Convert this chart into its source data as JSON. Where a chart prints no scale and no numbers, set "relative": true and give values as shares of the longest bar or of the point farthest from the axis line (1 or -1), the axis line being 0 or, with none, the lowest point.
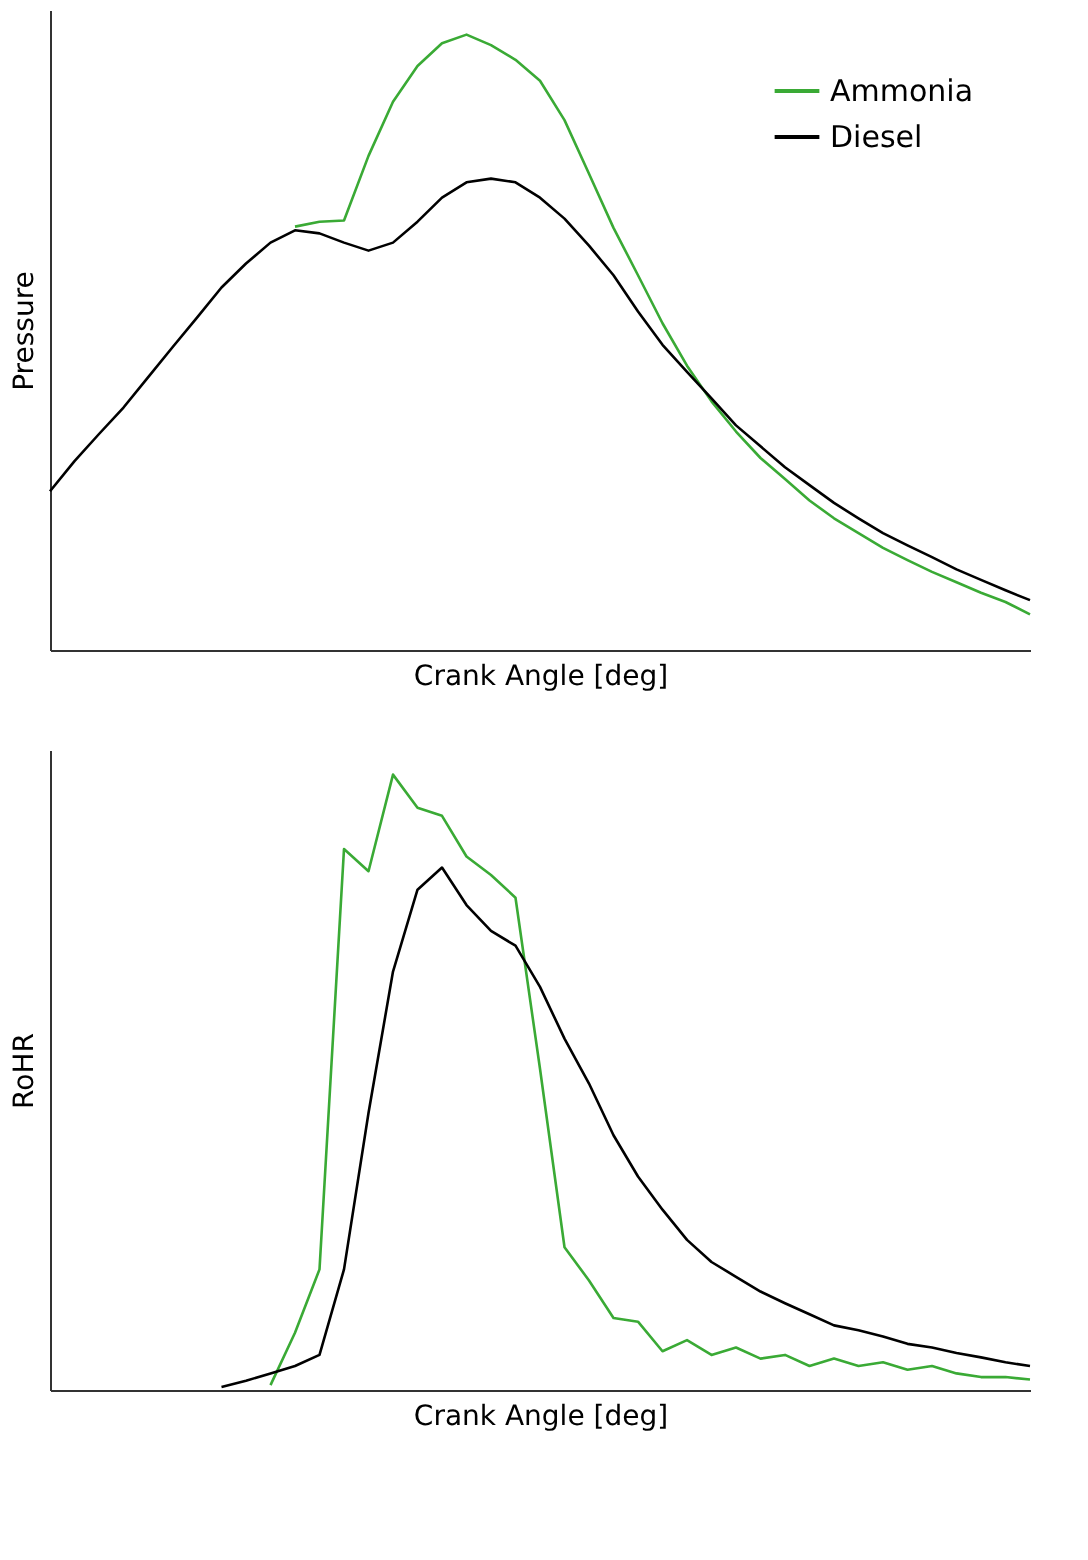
{
  "chart_data": [
    {
      "type": "line",
      "relative": true,
      "ylabel": "Pressure",
      "xlabel": "Crank Angle [deg]",
      "legend": "top right",
      "grid": false,
      "tick_labels": false,
      "categories": [
        null,
        null,
        null,
        null,
        null,
        null,
        null,
        null,
        null,
        null,
        null,
        null,
        null,
        null,
        null,
        null,
        null,
        null,
        null,
        null,
        null,
        null,
        null,
        null,
        null,
        null,
        null,
        null,
        null,
        null,
        null,
        null,
        null,
        null,
        null,
        null,
        null,
        null,
        null,
        null,
        null
      ],
      "series": [
        {
          "name": "Ammonia",
          "color": "#3aaa35",
          "values": [
            null,
            null,
            null,
            null,
            null,
            null,
            null,
            null,
            null,
            null,
            0.688,
            0.696,
            0.698,
            0.803,
            0.891,
            0.949,
            0.986,
            1.0,
            0.983,
            0.959,
            0.925,
            0.861,
            0.774,
            0.686,
            0.609,
            0.531,
            0.462,
            0.404,
            0.355,
            0.312,
            0.278,
            0.243,
            0.214,
            0.19,
            0.166,
            0.146,
            0.127,
            0.11,
            0.093,
            0.078,
            0.058
          ]
        },
        {
          "name": "Diesel",
          "color": "#000000",
          "values": [
            0.258,
            0.307,
            0.351,
            0.394,
            0.443,
            0.492,
            0.54,
            0.589,
            0.628,
            0.662,
            0.682,
            0.677,
            0.662,
            0.649,
            0.662,
            0.696,
            0.735,
            0.76,
            0.766,
            0.76,
            0.735,
            0.701,
            0.657,
            0.609,
            0.55,
            0.496,
            0.452,
            0.409,
            0.365,
            0.331,
            0.297,
            0.268,
            0.239,
            0.214,
            0.19,
            0.17,
            0.151,
            0.131,
            0.114,
            0.097,
            0.081
          ]
        }
      ]
    },
    {
      "type": "line",
      "relative": true,
      "ylabel": "RoHR",
      "xlabel": "Crank Angle [deg]",
      "grid": false,
      "tick_labels": false,
      "categories": [
        null,
        null,
        null,
        null,
        null,
        null,
        null,
        null,
        null,
        null,
        null,
        null,
        null,
        null,
        null,
        null,
        null,
        null,
        null,
        null,
        null,
        null,
        null,
        null,
        null,
        null,
        null,
        null,
        null,
        null,
        null,
        null,
        null,
        null,
        null,
        null,
        null,
        null,
        null,
        null,
        null
      ],
      "series": [
        {
          "color": "#3aaa35",
          "values": [
            null,
            null,
            null,
            null,
            null,
            null,
            null,
            null,
            null,
            0.008,
            0.093,
            0.196,
            0.879,
            0.843,
            1.0,
            0.946,
            0.933,
            0.867,
            0.837,
            0.8,
            0.522,
            0.232,
            0.178,
            0.117,
            0.111,
            0.063,
            0.081,
            0.057,
            0.069,
            0.051,
            0.057,
            0.039,
            0.051,
            0.039,
            0.045,
            0.033,
            0.039,
            0.027,
            0.021,
            0.021,
            0.017
          ]
        },
        {
          "color": "#000000",
          "values": [
            null,
            null,
            null,
            null,
            null,
            null,
            null,
            0.005,
            0.015,
            0.027,
            0.039,
            0.057,
            0.196,
            0.45,
            0.68,
            0.813,
            0.849,
            0.788,
            0.746,
            0.722,
            0.655,
            0.571,
            0.498,
            0.414,
            0.347,
            0.293,
            0.244,
            0.208,
            0.184,
            0.16,
            0.141,
            0.123,
            0.105,
            0.097,
            0.087,
            0.075,
            0.069,
            0.06,
            0.053,
            0.045,
            0.039
          ]
        }
      ]
    }
  ]
}
